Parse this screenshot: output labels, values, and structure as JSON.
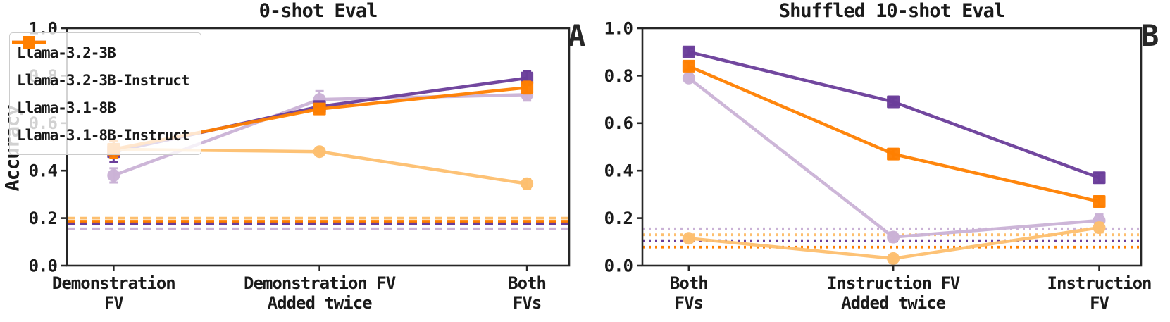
{
  "chart_data": [
    {
      "type": "line",
      "panel_letter": "A",
      "title": "0-shot Eval",
      "ylabel": "Accuracy",
      "ylim": [
        0.0,
        1.0
      ],
      "yticks": [
        "0.0",
        "0.2",
        "0.4",
        "0.6",
        "0.8",
        "1.0"
      ],
      "grid": false,
      "legend": true,
      "legend_position": "upper-left",
      "baseline_style": "dashed",
      "categories": [
        [
          "Demonstration",
          "FV"
        ],
        [
          "Demonstration FV",
          "Added twice"
        ],
        [
          "Both",
          "FVs"
        ]
      ],
      "series": [
        {
          "name": "Llama-3.2-3B",
          "color": "#cab2d6",
          "marker": "circle",
          "values": [
            0.38,
            0.7,
            0.72
          ],
          "errors": [
            0.03,
            0.035,
            0.025
          ],
          "baseline": 0.155
        },
        {
          "name": "Llama-3.2-3B-Instruct",
          "color": "#6a3d9a",
          "marker": "square",
          "values": [
            0.48,
            0.67,
            0.79
          ],
          "errors": [
            0.045,
            0.02,
            0.03
          ],
          "baseline": 0.177
        },
        {
          "name": "Llama-3.1-8B",
          "color": "#fdbf6f",
          "marker": "circle",
          "values": [
            0.49,
            0.48,
            0.345
          ],
          "errors": [
            0.02,
            0.015,
            0.02
          ],
          "baseline": 0.2
        },
        {
          "name": "Llama-3.1-8B-Instruct",
          "color": "#ff7f00",
          "marker": "square",
          "values": [
            0.49,
            0.66,
            0.75
          ],
          "errors": [
            0.035,
            0.02,
            0.025
          ],
          "baseline": 0.187
        }
      ]
    },
    {
      "type": "line",
      "panel_letter": "B",
      "title": "Shuffled 10-shot Eval",
      "ylabel": "",
      "ylim": [
        0.0,
        1.0
      ],
      "yticks": [
        "0.0",
        "0.2",
        "0.4",
        "0.6",
        "0.8",
        "1.0"
      ],
      "grid": false,
      "legend": false,
      "baseline_style": "dotted",
      "categories": [
        [
          "Both",
          "FVs"
        ],
        [
          "Instruction FV",
          "Added twice"
        ],
        [
          "Instruction",
          "FV"
        ]
      ],
      "series": [
        {
          "name": "Llama-3.2-3B",
          "color": "#cab2d6",
          "marker": "circle",
          "values": [
            0.79,
            0.12,
            0.19
          ],
          "errors": [
            0.015,
            0.02,
            0.025
          ],
          "baseline": 0.155
        },
        {
          "name": "Llama-3.2-3B-Instruct",
          "color": "#6a3d9a",
          "marker": "square",
          "values": [
            0.9,
            0.69,
            0.37
          ],
          "errors": [
            0.015,
            0.015,
            0.02
          ],
          "baseline": 0.105
        },
        {
          "name": "Llama-3.1-8B",
          "color": "#fdbf6f",
          "marker": "circle",
          "values": [
            0.115,
            0.03,
            0.16
          ],
          "errors": [
            0.01,
            0.012,
            0.02
          ],
          "baseline": 0.13
        },
        {
          "name": "Llama-3.1-8B-Instruct",
          "color": "#ff7f00",
          "marker": "square",
          "values": [
            0.84,
            0.47,
            0.27
          ],
          "errors": [
            0.015,
            0.02,
            0.02
          ],
          "baseline": 0.078
        }
      ]
    }
  ]
}
